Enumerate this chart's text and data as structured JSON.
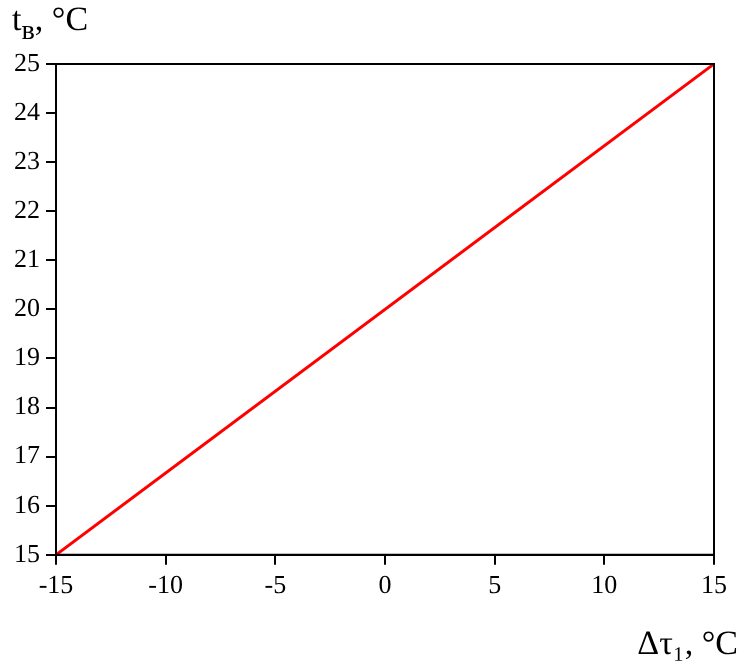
{
  "chart_data": {
    "type": "line",
    "xlabel": "Δτ₁, °C",
    "ylabel": "t$_{в}$, °C",
    "x": [
      -15,
      15
    ],
    "series": [
      {
        "color": "#ff0000",
        "values": [
          15,
          25
        ]
      }
    ],
    "xlim": [
      -15,
      15
    ],
    "xticks": [
      -15,
      -10,
      -5,
      0,
      5,
      10,
      15
    ],
    "ylim": [
      15,
      25
    ],
    "yticks": [
      15,
      16,
      17,
      18,
      19,
      20,
      21,
      22,
      23,
      24,
      25
    ],
    "grid": false,
    "legend": false,
    "marker": "none",
    "line_style": "solid"
  }
}
